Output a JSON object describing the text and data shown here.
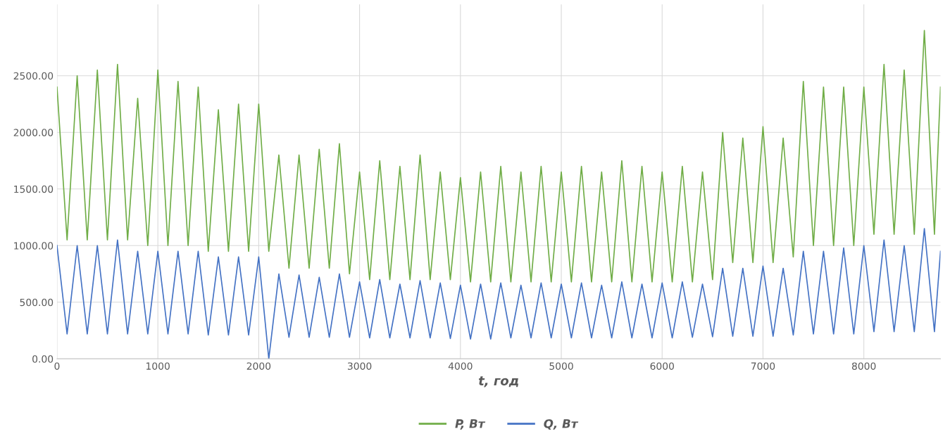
{
  "chart_data": {
    "type": "line",
    "xlabel": "t, год",
    "x": [
      0,
      100,
      200,
      300,
      400,
      500,
      600,
      700,
      800,
      900,
      1000,
      1100,
      1200,
      1300,
      1400,
      1500,
      1600,
      1700,
      1800,
      1900,
      2000,
      2100,
      2200,
      2300,
      2400,
      2500,
      2600,
      2700,
      2800,
      2900,
      3000,
      3100,
      3200,
      3300,
      3400,
      3500,
      3600,
      3700,
      3800,
      3900,
      4000,
      4100,
      4200,
      4300,
      4400,
      4500,
      4600,
      4700,
      4800,
      4900,
      5000,
      5100,
      5200,
      5300,
      5400,
      5500,
      5600,
      5700,
      5800,
      5900,
      6000,
      6100,
      6200,
      6300,
      6400,
      6500,
      6600,
      6700,
      6800,
      6900,
      7000,
      7100,
      7200,
      7300,
      7400,
      7500,
      7600,
      7700,
      7800,
      7900,
      8000,
      8100,
      8200,
      8300,
      8400,
      8500,
      8600,
      8700,
      8760
    ],
    "series": [
      {
        "name": "P, Вт",
        "color": "#70ad47",
        "values": [
          2400,
          1050,
          2500,
          1050,
          2550,
          1050,
          2600,
          1050,
          2300,
          1000,
          2550,
          1000,
          2450,
          1000,
          2400,
          950,
          2200,
          950,
          2250,
          950,
          2250,
          950,
          1800,
          800,
          1800,
          800,
          1850,
          800,
          1900,
          750,
          1650,
          700,
          1750,
          700,
          1700,
          700,
          1800,
          700,
          1650,
          700,
          1600,
          680,
          1650,
          680,
          1700,
          680,
          1650,
          680,
          1700,
          680,
          1650,
          680,
          1700,
          680,
          1650,
          680,
          1750,
          680,
          1700,
          680,
          1650,
          680,
          1700,
          680,
          1650,
          700,
          2000,
          850,
          1950,
          850,
          2050,
          850,
          1950,
          900,
          2450,
          1000,
          2400,
          1000,
          2400,
          1000,
          2400,
          1100,
          2600,
          1100,
          2550,
          1100,
          2900,
          1100,
          2400
        ]
      },
      {
        "name": "Q, Вт",
        "color": "#4472c4",
        "values": [
          1000,
          220,
          1000,
          220,
          1000,
          220,
          1050,
          220,
          950,
          220,
          950,
          220,
          950,
          220,
          950,
          210,
          900,
          210,
          900,
          210,
          900,
          0,
          750,
          190,
          740,
          190,
          720,
          190,
          750,
          190,
          680,
          185,
          700,
          185,
          660,
          185,
          690,
          185,
          670,
          180,
          650,
          175,
          660,
          175,
          670,
          185,
          650,
          185,
          670,
          185,
          660,
          185,
          670,
          185,
          650,
          185,
          680,
          185,
          660,
          185,
          670,
          185,
          680,
          190,
          660,
          195,
          800,
          200,
          800,
          200,
          820,
          200,
          800,
          210,
          950,
          220,
          950,
          220,
          980,
          220,
          1000,
          240,
          1050,
          240,
          1000,
          240,
          1150,
          240,
          950
        ]
      }
    ],
    "xlim": [
      0,
      8760
    ],
    "xticks": [
      0,
      1000,
      2000,
      3000,
      4000,
      5000,
      6000,
      7000,
      8000
    ],
    "ylim": [
      0,
      3130
    ],
    "yticks": [
      {
        "value": 0,
        "label": "0.00"
      },
      {
        "value": 500,
        "label": "500.00"
      },
      {
        "value": 1000,
        "label": "1000.00"
      },
      {
        "value": 1500,
        "label": "1500.00"
      },
      {
        "value": 2000,
        "label": "2000.00"
      },
      {
        "value": 2500,
        "label": "2500.00"
      }
    ],
    "grid": true,
    "legend": "bottom"
  }
}
